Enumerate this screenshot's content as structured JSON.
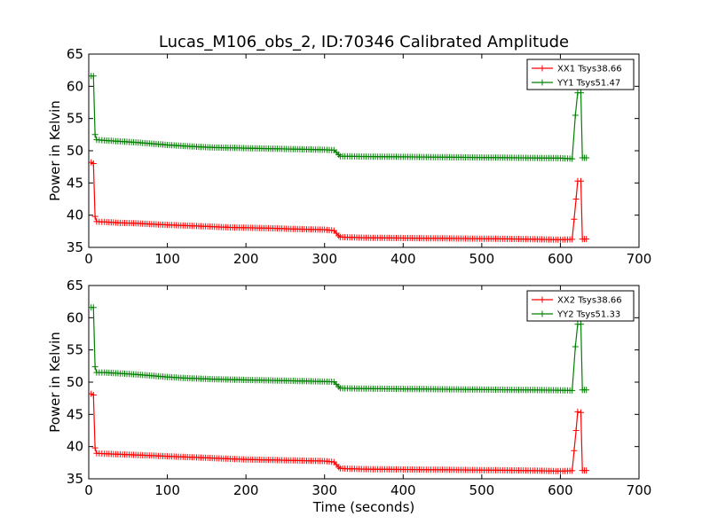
{
  "figure": {
    "title": "Lucas_M106_obs_2, ID:70346 Calibrated Amplitude"
  },
  "chart_data": [
    {
      "type": "line",
      "title": "Lucas_M106_obs_2, ID:70346 Calibrated Amplitude",
      "xlabel": "",
      "ylabel": "Power in Kelvin",
      "xlim": [
        0,
        700
      ],
      "ylim": [
        35,
        65
      ],
      "xticks": [
        "0",
        "100",
        "200",
        "300",
        "400",
        "500",
        "600",
        "700"
      ],
      "yticks": [
        "35",
        "40",
        "45",
        "50",
        "55",
        "60",
        "65"
      ],
      "grid": false,
      "legend_position": "top-right",
      "series": [
        {
          "name": "XX1 Tsys38.66",
          "color": "#ff0000",
          "points": [
            [
              3,
              48.2
            ],
            [
              6,
              48.0
            ],
            [
              8,
              39.8
            ],
            [
              10,
              39.0
            ],
            [
              20,
              38.95
            ],
            [
              40,
              38.8
            ],
            [
              60,
              38.75
            ],
            [
              80,
              38.6
            ],
            [
              100,
              38.5
            ],
            [
              120,
              38.4
            ],
            [
              140,
              38.3
            ],
            [
              160,
              38.2
            ],
            [
              180,
              38.1
            ],
            [
              200,
              38.05
            ],
            [
              220,
              38.0
            ],
            [
              240,
              37.95
            ],
            [
              260,
              37.85
            ],
            [
              280,
              37.8
            ],
            [
              300,
              37.75
            ],
            [
              312,
              37.6
            ],
            [
              318,
              36.8
            ],
            [
              320,
              36.6
            ],
            [
              350,
              36.5
            ],
            [
              400,
              36.45
            ],
            [
              450,
              36.4
            ],
            [
              500,
              36.35
            ],
            [
              550,
              36.3
            ],
            [
              600,
              36.2
            ],
            [
              615,
              36.25
            ],
            [
              620,
              42.5
            ],
            [
              622,
              45.3
            ],
            [
              626,
              45.3
            ],
            [
              628,
              36.3
            ],
            [
              633,
              36.3
            ]
          ]
        },
        {
          "name": "YY1 Tsys51.47",
          "color": "#008000",
          "points": [
            [
              3,
              61.6
            ],
            [
              6,
              61.6
            ],
            [
              8,
              52.5
            ],
            [
              10,
              51.7
            ],
            [
              20,
              51.6
            ],
            [
              40,
              51.45
            ],
            [
              60,
              51.3
            ],
            [
              80,
              51.1
            ],
            [
              100,
              50.9
            ],
            [
              120,
              50.75
            ],
            [
              140,
              50.6
            ],
            [
              160,
              50.5
            ],
            [
              180,
              50.45
            ],
            [
              200,
              50.4
            ],
            [
              220,
              50.35
            ],
            [
              240,
              50.3
            ],
            [
              260,
              50.25
            ],
            [
              280,
              50.2
            ],
            [
              300,
              50.15
            ],
            [
              312,
              50.1
            ],
            [
              318,
              49.4
            ],
            [
              320,
              49.15
            ],
            [
              350,
              49.1
            ],
            [
              400,
              49.05
            ],
            [
              450,
              49.0
            ],
            [
              500,
              48.95
            ],
            [
              550,
              48.9
            ],
            [
              600,
              48.85
            ],
            [
              615,
              48.75
            ],
            [
              619,
              55.5
            ],
            [
              622,
              59.0
            ],
            [
              626,
              59.0
            ],
            [
              628,
              48.9
            ],
            [
              633,
              48.9
            ]
          ]
        }
      ]
    },
    {
      "type": "line",
      "title": "",
      "xlabel": "Time (seconds)",
      "ylabel": "Power in Kelvin",
      "xlim": [
        0,
        700
      ],
      "ylim": [
        35,
        65
      ],
      "xticks": [
        "0",
        "100",
        "200",
        "300",
        "400",
        "500",
        "600",
        "700"
      ],
      "yticks": [
        "35",
        "40",
        "45",
        "50",
        "55",
        "60",
        "65"
      ],
      "grid": false,
      "legend_position": "top-right",
      "series": [
        {
          "name": "XX2 Tsys38.66",
          "color": "#ff0000",
          "points": [
            [
              3,
              48.2
            ],
            [
              6,
              48.0
            ],
            [
              8,
              39.8
            ],
            [
              10,
              38.95
            ],
            [
              20,
              38.9
            ],
            [
              40,
              38.8
            ],
            [
              60,
              38.7
            ],
            [
              80,
              38.6
            ],
            [
              100,
              38.5
            ],
            [
              120,
              38.4
            ],
            [
              140,
              38.3
            ],
            [
              160,
              38.2
            ],
            [
              180,
              38.1
            ],
            [
              200,
              38.0
            ],
            [
              220,
              37.95
            ],
            [
              240,
              37.9
            ],
            [
              260,
              37.85
            ],
            [
              280,
              37.8
            ],
            [
              300,
              37.75
            ],
            [
              312,
              37.6
            ],
            [
              318,
              36.8
            ],
            [
              320,
              36.6
            ],
            [
              350,
              36.5
            ],
            [
              400,
              36.45
            ],
            [
              450,
              36.4
            ],
            [
              500,
              36.35
            ],
            [
              550,
              36.3
            ],
            [
              600,
              36.2
            ],
            [
              615,
              36.25
            ],
            [
              620,
              42.5
            ],
            [
              622,
              45.4
            ],
            [
              626,
              45.3
            ],
            [
              628,
              36.3
            ],
            [
              633,
              36.3
            ]
          ]
        },
        {
          "name": "YY2 Tsys51.33",
          "color": "#008000",
          "points": [
            [
              3,
              61.6
            ],
            [
              6,
              61.6
            ],
            [
              8,
              52.4
            ],
            [
              10,
              51.5
            ],
            [
              20,
              51.5
            ],
            [
              40,
              51.35
            ],
            [
              60,
              51.2
            ],
            [
              80,
              51.0
            ],
            [
              100,
              50.8
            ],
            [
              120,
              50.65
            ],
            [
              140,
              50.55
            ],
            [
              160,
              50.45
            ],
            [
              180,
              50.4
            ],
            [
              200,
              50.35
            ],
            [
              220,
              50.3
            ],
            [
              240,
              50.25
            ],
            [
              260,
              50.2
            ],
            [
              280,
              50.15
            ],
            [
              300,
              50.1
            ],
            [
              312,
              50.05
            ],
            [
              318,
              49.3
            ],
            [
              320,
              49.05
            ],
            [
              350,
              49.0
            ],
            [
              400,
              48.95
            ],
            [
              450,
              48.9
            ],
            [
              500,
              48.85
            ],
            [
              550,
              48.8
            ],
            [
              600,
              48.75
            ],
            [
              615,
              48.7
            ],
            [
              619,
              55.5
            ],
            [
              622,
              59.0
            ],
            [
              626,
              59.0
            ],
            [
              628,
              48.8
            ],
            [
              633,
              48.8
            ]
          ]
        }
      ]
    }
  ]
}
